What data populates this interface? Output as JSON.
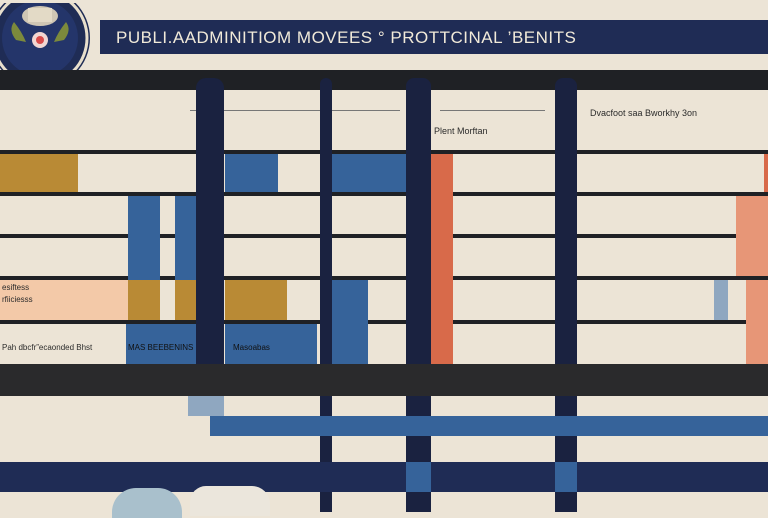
{
  "header": {
    "title": "PUBLI.AADMINITIOM MOVEES ° PROTTCINAL ’BENITS"
  },
  "labels": {
    "column_header": "Plent Morftan",
    "right_header": "Dvacfoot saa Bworkhy 3on",
    "left_label_a": "esiftess",
    "left_label_b": "rfiiciesss",
    "left_footer": "Pah dbcfr”ecaonded Bhst",
    "mid_footer": "MAS BEEBENINS",
    "mid_footer_2": "Masoabas"
  },
  "icons": {
    "seal": "government-seal-icon"
  },
  "colors": {
    "navy": "#1f2c55",
    "blue": "#36639a",
    "gold": "#b98a35",
    "orange": "#d86a4a",
    "peach": "#f3c9a8",
    "cream": "#ece4d6",
    "dark": "#1f2125"
  }
}
